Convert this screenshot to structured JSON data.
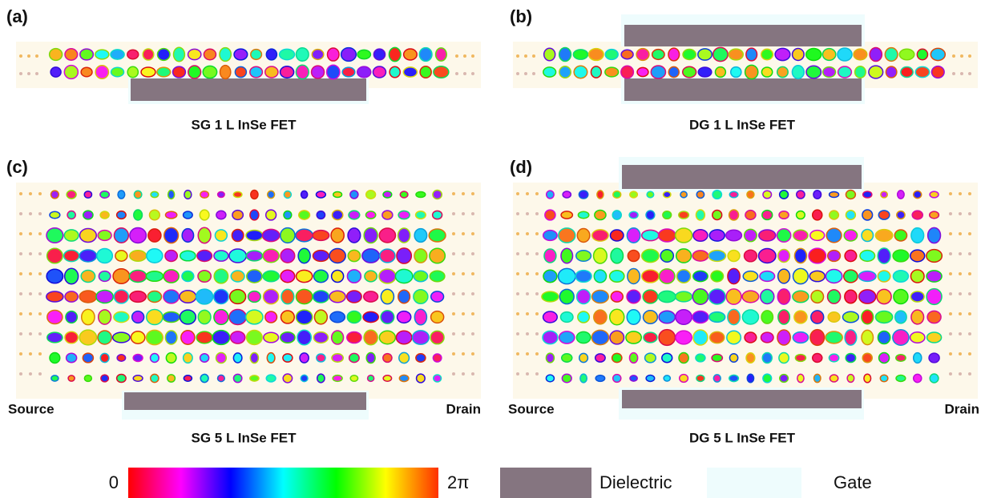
{
  "panels": [
    {
      "label": "(a)",
      "caption": "SG 1 L InSe FET"
    },
    {
      "label": "(b)",
      "caption": "DG 1 L InSe FET"
    },
    {
      "label": "(c)",
      "caption": "SG 5 L InSe FET",
      "source": "Source",
      "drain": "Drain"
    },
    {
      "label": "(d)",
      "caption": "DG 5 L InSe FET",
      "source": "Source",
      "drain": "Drain"
    }
  ],
  "colorbar": {
    "min_label": "0",
    "max_label": "2π"
  },
  "legend": [
    {
      "label": "Dielectric"
    },
    {
      "label": "Gate"
    }
  ]
}
